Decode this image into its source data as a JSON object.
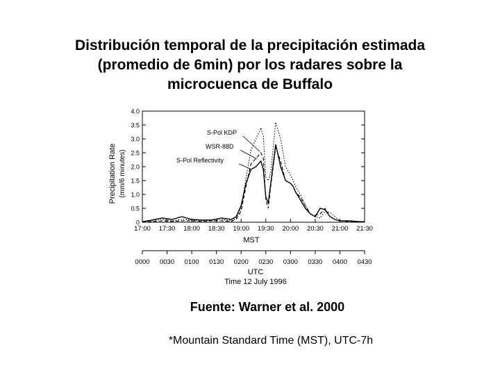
{
  "slide": {
    "title_lines": [
      "Distribución temporal de la precipitación estimada",
      "(promedio de 6min) por los radares sobre la",
      "microcuenca de Buffalo"
    ],
    "source": "Fuente: Warner et al. 2000",
    "note": "*Mountain Standard Time (MST), UTC-7h"
  },
  "chart_data": {
    "type": "line",
    "title": "",
    "ylabel_line1": "Precipitation Rate",
    "ylabel_line2": "(mm/6 minutes)",
    "xlabel": "MST",
    "x_top_ticks": [
      "17:00",
      "17:30",
      "18:00",
      "18:30",
      "19:00",
      "19:30",
      "20:00",
      "20:30",
      "21:00",
      "21:30"
    ],
    "x_bottom_ticks": [
      "0000",
      "0030",
      "0100",
      "0130",
      "0200",
      "0230",
      "0300",
      "0330",
      "0400",
      "0430"
    ],
    "x_bottom_label": "UTC",
    "x_bottom_sublabel": "Time 12 July 1996",
    "ylim": [
      0,
      4.0
    ],
    "yticks": [
      "0",
      "0.5",
      "1.0",
      "1.5",
      "2.0",
      "2.5",
      "3.0",
      "3.5",
      "4.0"
    ],
    "x_hours": [
      17.0,
      21.5
    ],
    "x": [
      17.0,
      17.2,
      17.4,
      17.6,
      17.8,
      18.0,
      18.2,
      18.4,
      18.6,
      18.8,
      18.9,
      19.0,
      19.1,
      19.2,
      19.3,
      19.4,
      19.45,
      19.5,
      19.55,
      19.6,
      19.7,
      19.8,
      19.9,
      20.0,
      20.05,
      20.1,
      20.2,
      20.3,
      20.4,
      20.5,
      20.6,
      20.7,
      20.8,
      20.9,
      21.0,
      21.2,
      21.4,
      21.5
    ],
    "series": [
      {
        "name": "S-Pol KDP",
        "style": "dotted",
        "values": [
          0.02,
          0.05,
          0.1,
          0.05,
          0.1,
          0.08,
          0.05,
          0.05,
          0.1,
          0.05,
          0.15,
          0.5,
          1.6,
          2.6,
          3.0,
          3.4,
          3.1,
          1.6,
          1.5,
          1.8,
          3.6,
          3.0,
          2.0,
          1.7,
          1.5,
          1.3,
          1.0,
          0.6,
          0.3,
          0.2,
          0.15,
          0.4,
          0.35,
          0.2,
          0.05,
          0.05,
          0.02,
          0.02
        ]
      },
      {
        "name": "WSR-88D",
        "style": "dashed",
        "values": [
          0.02,
          0.02,
          0.05,
          0.03,
          0.05,
          0.05,
          0.03,
          0.05,
          0.05,
          0.03,
          0.1,
          0.4,
          1.3,
          2.1,
          2.3,
          2.5,
          2.3,
          0.8,
          0.5,
          1.3,
          2.7,
          2.2,
          1.5,
          1.4,
          1.3,
          1.1,
          0.9,
          0.6,
          0.3,
          0.25,
          0.3,
          0.5,
          0.2,
          0.1,
          0.05,
          0.02,
          0.02,
          0.02
        ]
      },
      {
        "name": "S-Pol Reflectivity",
        "style": "solid",
        "values": [
          0.02,
          0.08,
          0.15,
          0.1,
          0.2,
          0.1,
          0.08,
          0.08,
          0.15,
          0.1,
          0.2,
          0.6,
          1.4,
          1.9,
          2.0,
          2.2,
          1.9,
          0.9,
          0.7,
          1.4,
          2.8,
          2.0,
          1.5,
          1.4,
          1.3,
          1.1,
          0.8,
          0.5,
          0.3,
          0.2,
          0.5,
          0.45,
          0.2,
          0.1,
          0.05,
          0.05,
          0.02,
          0.02
        ]
      }
    ]
  }
}
